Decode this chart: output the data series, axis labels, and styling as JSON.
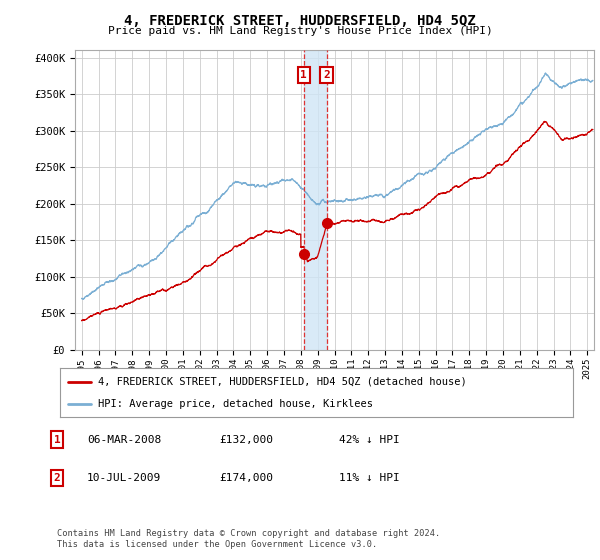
{
  "title": "4, FREDERICK STREET, HUDDERSFIELD, HD4 5QZ",
  "subtitle": "Price paid vs. HM Land Registry's House Price Index (HPI)",
  "ylabel_ticks": [
    "£0",
    "£50K",
    "£100K",
    "£150K",
    "£200K",
    "£250K",
    "£300K",
    "£350K",
    "£400K"
  ],
  "ytick_vals": [
    0,
    50000,
    100000,
    150000,
    200000,
    250000,
    300000,
    350000,
    400000
  ],
  "ylim": [
    0,
    410000
  ],
  "xlim_start": 1994.6,
  "xlim_end": 2025.4,
  "hpi_color": "#7bafd4",
  "hpi_shade_color": "#d0e5f5",
  "price_color": "#cc0000",
  "marker1_date": 2008.18,
  "marker1_price": 132000,
  "marker2_date": 2009.53,
  "marker2_price": 174000,
  "legend_label_red": "4, FREDERICK STREET, HUDDERSFIELD, HD4 5QZ (detached house)",
  "legend_label_blue": "HPI: Average price, detached house, Kirklees",
  "ann1_date": "06-MAR-2008",
  "ann1_price": "£132,000",
  "ann1_hpi": "42% ↓ HPI",
  "ann2_date": "10-JUL-2009",
  "ann2_price": "£174,000",
  "ann2_hpi": "11% ↓ HPI",
  "footer": "Contains HM Land Registry data © Crown copyright and database right 2024.\nThis data is licensed under the Open Government Licence v3.0.",
  "background_color": "#ffffff",
  "grid_color": "#cccccc"
}
